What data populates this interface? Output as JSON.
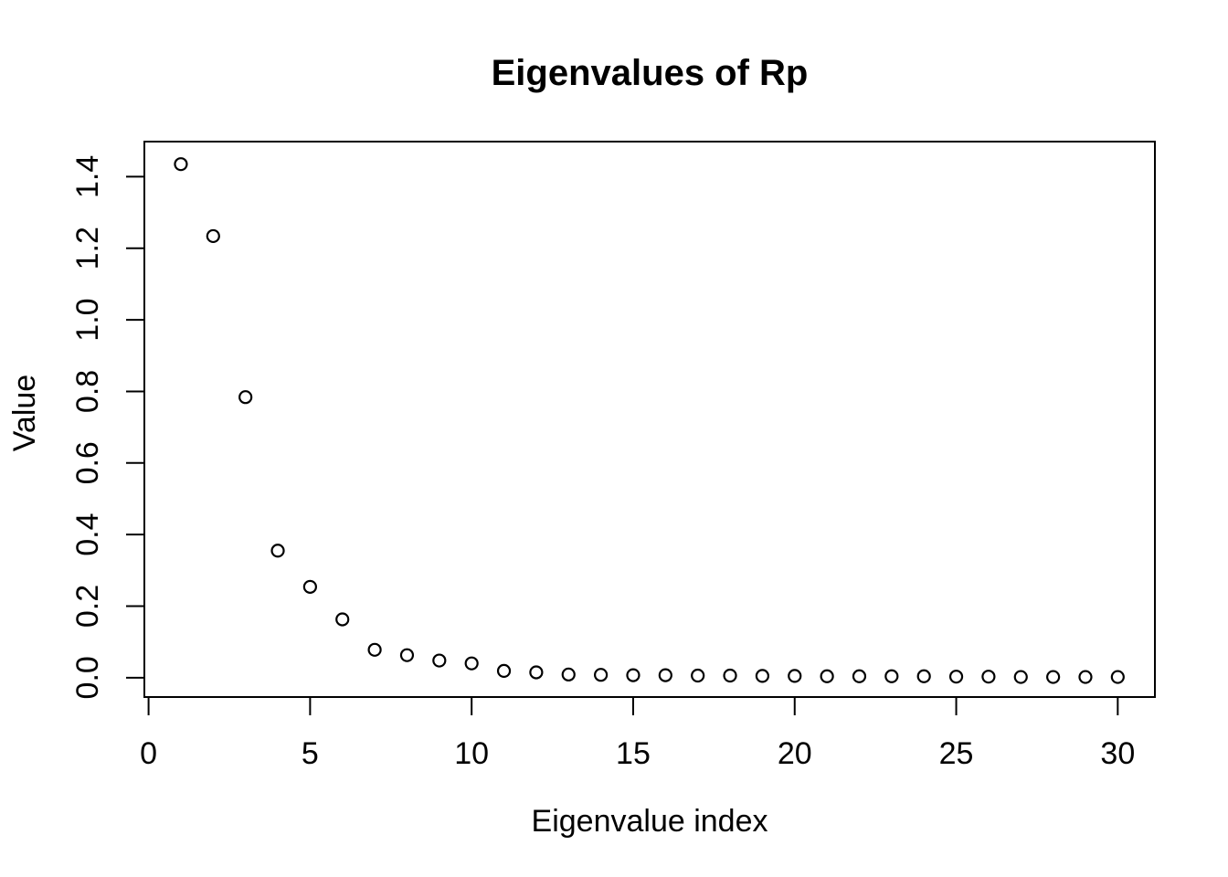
{
  "figure": {
    "background": "#ffffff",
    "foreground": "#000000"
  },
  "chart_data": {
    "type": "scatter",
    "title": "Eigenvalues of Rp",
    "xlabel": "Eigenvalue index",
    "ylabel": "Value",
    "marker": "open-circle",
    "marker_color": "#000000",
    "axis_color": "#000000",
    "background": "#ffffff",
    "grid": false,
    "legend": "none",
    "xlim": [
      -0.13,
      31.15
    ],
    "ylim": [
      -0.054,
      1.498
    ],
    "x": [
      1,
      2,
      3,
      4,
      5,
      6,
      7,
      8,
      9,
      10,
      11,
      12,
      13,
      14,
      15,
      16,
      17,
      18,
      19,
      20,
      21,
      22,
      23,
      24,
      25,
      26,
      27,
      28,
      29,
      30
    ],
    "y": [
      1.435,
      1.234,
      0.784,
      0.355,
      0.254,
      0.163,
      0.078,
      0.063,
      0.048,
      0.04,
      0.019,
      0.015,
      0.009,
      0.008,
      0.007,
      0.007,
      0.006,
      0.006,
      0.005,
      0.005,
      0.004,
      0.004,
      0.004,
      0.004,
      0.003,
      0.003,
      0.002,
      0.002,
      0.002,
      0.002
    ],
    "x_ticks": [
      {
        "v": 0,
        "label": "0"
      },
      {
        "v": 5,
        "label": "5"
      },
      {
        "v": 10,
        "label": "10"
      },
      {
        "v": 15,
        "label": "15"
      },
      {
        "v": 20,
        "label": "20"
      },
      {
        "v": 25,
        "label": "25"
      },
      {
        "v": 30,
        "label": "30"
      }
    ],
    "y_ticks": [
      {
        "v": 0.0,
        "label": "0.0"
      },
      {
        "v": 0.2,
        "label": "0.2"
      },
      {
        "v": 0.4,
        "label": "0.4"
      },
      {
        "v": 0.6,
        "label": "0.6"
      },
      {
        "v": 0.8,
        "label": "0.8"
      },
      {
        "v": 1.0,
        "label": "1.0"
      },
      {
        "v": 1.2,
        "label": "1.2"
      },
      {
        "v": 1.4,
        "label": "1.4"
      }
    ]
  }
}
